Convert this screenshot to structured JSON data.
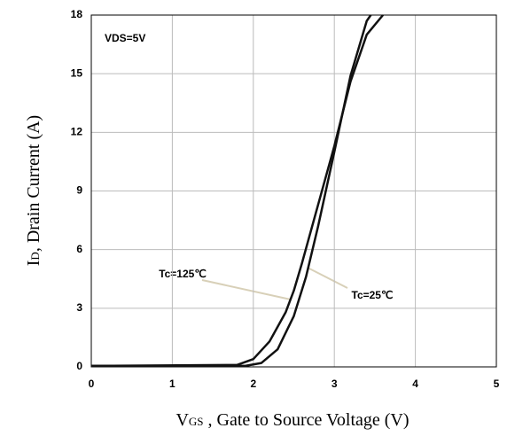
{
  "chart_data": {
    "type": "line",
    "ylabel": {
      "main": "I",
      "sub": "D",
      "rest": ", Drain Current (A)"
    },
    "xlabel": {
      "main": "V",
      "sub": "GS",
      "rest": " , Gate to Source Voltage (V)"
    },
    "annotations": [
      "VDS=5V"
    ],
    "xlim": [
      0,
      5
    ],
    "xticks": [
      0,
      1,
      2,
      3,
      4,
      5
    ],
    "ylim": [
      0,
      18
    ],
    "yticks": [
      0,
      3,
      6,
      9,
      12,
      15,
      18
    ],
    "grid": true,
    "series": [
      {
        "name": "Tc=125℃",
        "color": "#111111",
        "x": [
          0,
          1.8,
          2.0,
          2.2,
          2.4,
          2.5,
          2.6,
          2.8,
          3.0,
          3.2,
          3.4,
          3.6
        ],
        "values": [
          0.05,
          0.1,
          0.4,
          1.3,
          2.8,
          3.9,
          5.3,
          8.3,
          11.3,
          14.6,
          17.0,
          18
        ]
      },
      {
        "name": "Tc=25℃",
        "color": "#111111",
        "x": [
          0,
          1.9,
          2.1,
          2.3,
          2.5,
          2.65,
          2.8,
          3.0,
          3.2,
          3.4,
          3.45
        ],
        "values": [
          0.05,
          0.05,
          0.2,
          0.9,
          2.6,
          4.6,
          7.2,
          11.0,
          14.9,
          17.7,
          18
        ]
      }
    ]
  }
}
